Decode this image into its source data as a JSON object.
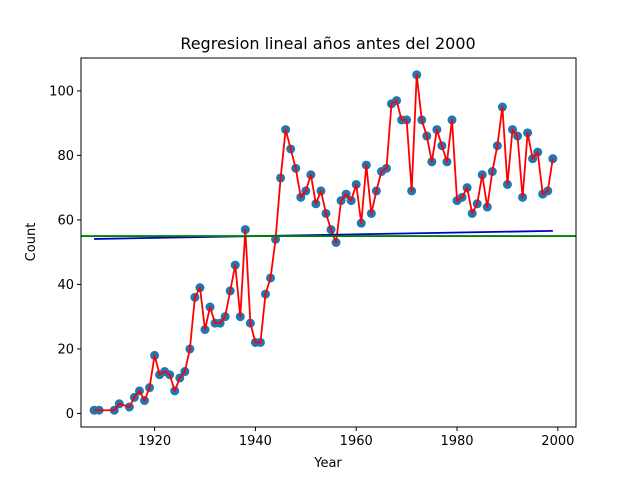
{
  "chart_data": {
    "type": "line",
    "title": "Regresion lineal años antes del 2000",
    "xlabel": "Year",
    "ylabel": "Count",
    "xlim": [
      1905.4,
      2003.6
    ],
    "ylim": [
      -4.2,
      110.2
    ],
    "x_ticks": [
      1920,
      1940,
      1960,
      1980,
      2000
    ],
    "y_ticks": [
      0,
      20,
      40,
      60,
      80,
      100
    ],
    "grid": false,
    "legend": "none",
    "series": [
      {
        "x": [
          1908,
          1909,
          1912,
          1913,
          1915,
          1916,
          1917,
          1918,
          1919,
          1920,
          1921,
          1922,
          1923,
          1924,
          1925,
          1926,
          1927,
          1928,
          1929,
          1930,
          1931,
          1932,
          1933,
          1934,
          1935,
          1936,
          1937,
          1938,
          1939,
          1940,
          1941,
          1942,
          1943,
          1944,
          1945,
          1946,
          1947,
          1948,
          1949,
          1950,
          1951,
          1952,
          1953,
          1954,
          1955,
          1956,
          1957,
          1958,
          1959,
          1960,
          1961,
          1962,
          1963,
          1964,
          1965,
          1966,
          1967,
          1968,
          1969,
          1970,
          1971,
          1972,
          1973,
          1974,
          1975,
          1976,
          1977,
          1978,
          1979,
          1980,
          1981,
          1982,
          1983,
          1984,
          1985,
          1986,
          1987,
          1988,
          1989,
          1990,
          1991,
          1992,
          1993,
          1994,
          1995,
          1996,
          1997,
          1998,
          1999
        ],
        "values": [
          1,
          1,
          1,
          3,
          2,
          5,
          7,
          4,
          8,
          18,
          12,
          13,
          12,
          7,
          11,
          13,
          20,
          36,
          39,
          26,
          33,
          28,
          28,
          30,
          38,
          46,
          30,
          57,
          28,
          22,
          22,
          37,
          42,
          54,
          73,
          88,
          82,
          76,
          67,
          69,
          74,
          65,
          69,
          62,
          57,
          53,
          66,
          68,
          66,
          71,
          59,
          77,
          62,
          69,
          75,
          76,
          96,
          97,
          91,
          91,
          69,
          105,
          91,
          86,
          78,
          88,
          83,
          78,
          91,
          66,
          67,
          70,
          62,
          65,
          74,
          64,
          75,
          83,
          95,
          71,
          88,
          86,
          67,
          87,
          79,
          81,
          68,
          69,
          79
        ],
        "line_color": "#ff0000",
        "marker_color": "#1f77b4"
      }
    ],
    "regression_line": {
      "x": [
        1908,
        1999
      ],
      "y": [
        54.1,
        56.6
      ],
      "color": "#0000cc"
    },
    "mean_line": {
      "y": 55,
      "color": "#008000"
    }
  }
}
